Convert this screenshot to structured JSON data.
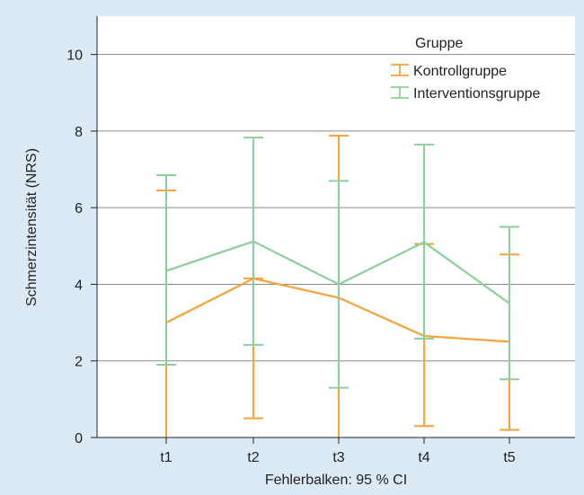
{
  "chart_data": {
    "type": "line",
    "categories": [
      "t1",
      "t2",
      "t3",
      "t4",
      "t5"
    ],
    "ylabel": "Schmerzintensität (NRS)",
    "xlabel": "Fehlerbalken: 95 % CI",
    "ylim": [
      0,
      11
    ],
    "yticks": [
      0,
      2,
      4,
      6,
      8,
      10
    ],
    "grid": true,
    "legend": {
      "title": "Gruppe",
      "placement": "top-right"
    },
    "series": [
      {
        "name": "Kontrollgruppe",
        "color": "#f5a33a",
        "values": [
          3.0,
          4.15,
          3.65,
          2.65,
          2.5
        ],
        "ci_low": [
          0,
          0.5,
          0,
          0.3,
          0.2
        ],
        "ci_high": [
          6.45,
          4.15,
          7.88,
          5.05,
          4.78
        ]
      },
      {
        "name": "Interventionsgruppe",
        "color": "#8ccf9a",
        "values": [
          4.35,
          5.12,
          4.0,
          5.1,
          3.5
        ],
        "ci_low": [
          1.9,
          2.42,
          1.3,
          2.58,
          1.52
        ],
        "ci_high": [
          6.85,
          7.83,
          6.7,
          7.65,
          5.5
        ]
      }
    ]
  }
}
